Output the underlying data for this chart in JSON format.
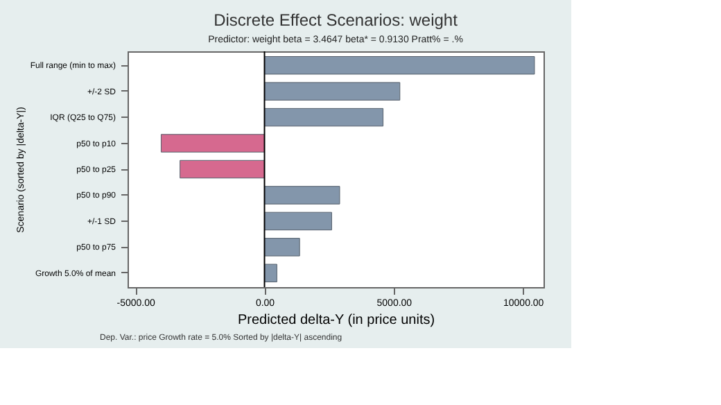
{
  "chart_data": {
    "type": "bar",
    "orientation": "horizontal",
    "title": "Discrete Effect Scenarios: weight",
    "subtitle": "Predictor: weight   beta = 3.4647   beta* = 0.9130   Pratt% = .%",
    "xlabel": "Predicted delta-Y (in price units)",
    "ylabel": "Scenario  (sorted by |delta-Y|)",
    "categories": [
      "Full range (min to max)",
      "+/-2 SD",
      "IQR  (Q25 to Q75)",
      "p50 to p10",
      "p50 to p25",
      "p50 to p90",
      "+/-1 SD",
      "p50 to p75",
      "Growth 5.0% of mean"
    ],
    "values": [
      10450,
      5240,
      4590,
      -4000,
      -3270,
      2910,
      2600,
      1360,
      480
    ],
    "colors": [
      "#8396ab",
      "#8396ab",
      "#8396ab",
      "#d6698f",
      "#d6698f",
      "#8396ab",
      "#8396ab",
      "#8396ab",
      "#8396ab"
    ],
    "xlim": [
      -5300,
      10800
    ],
    "xticks": [
      {
        "value": -5000,
        "label": "-5000.00"
      },
      {
        "value": 0,
        "label": "0.00"
      },
      {
        "value": 5000,
        "label": "5000.00"
      },
      {
        "value": 10000,
        "label": "10000.00"
      }
    ],
    "ref_lines": [
      {
        "axis": "x",
        "value": 0,
        "color": "#000000"
      }
    ],
    "annotations": [
      "Dep. Var.: price   Growth rate = 5.0%   Sorted by |delta-Y| ascending"
    ],
    "grid": false
  }
}
